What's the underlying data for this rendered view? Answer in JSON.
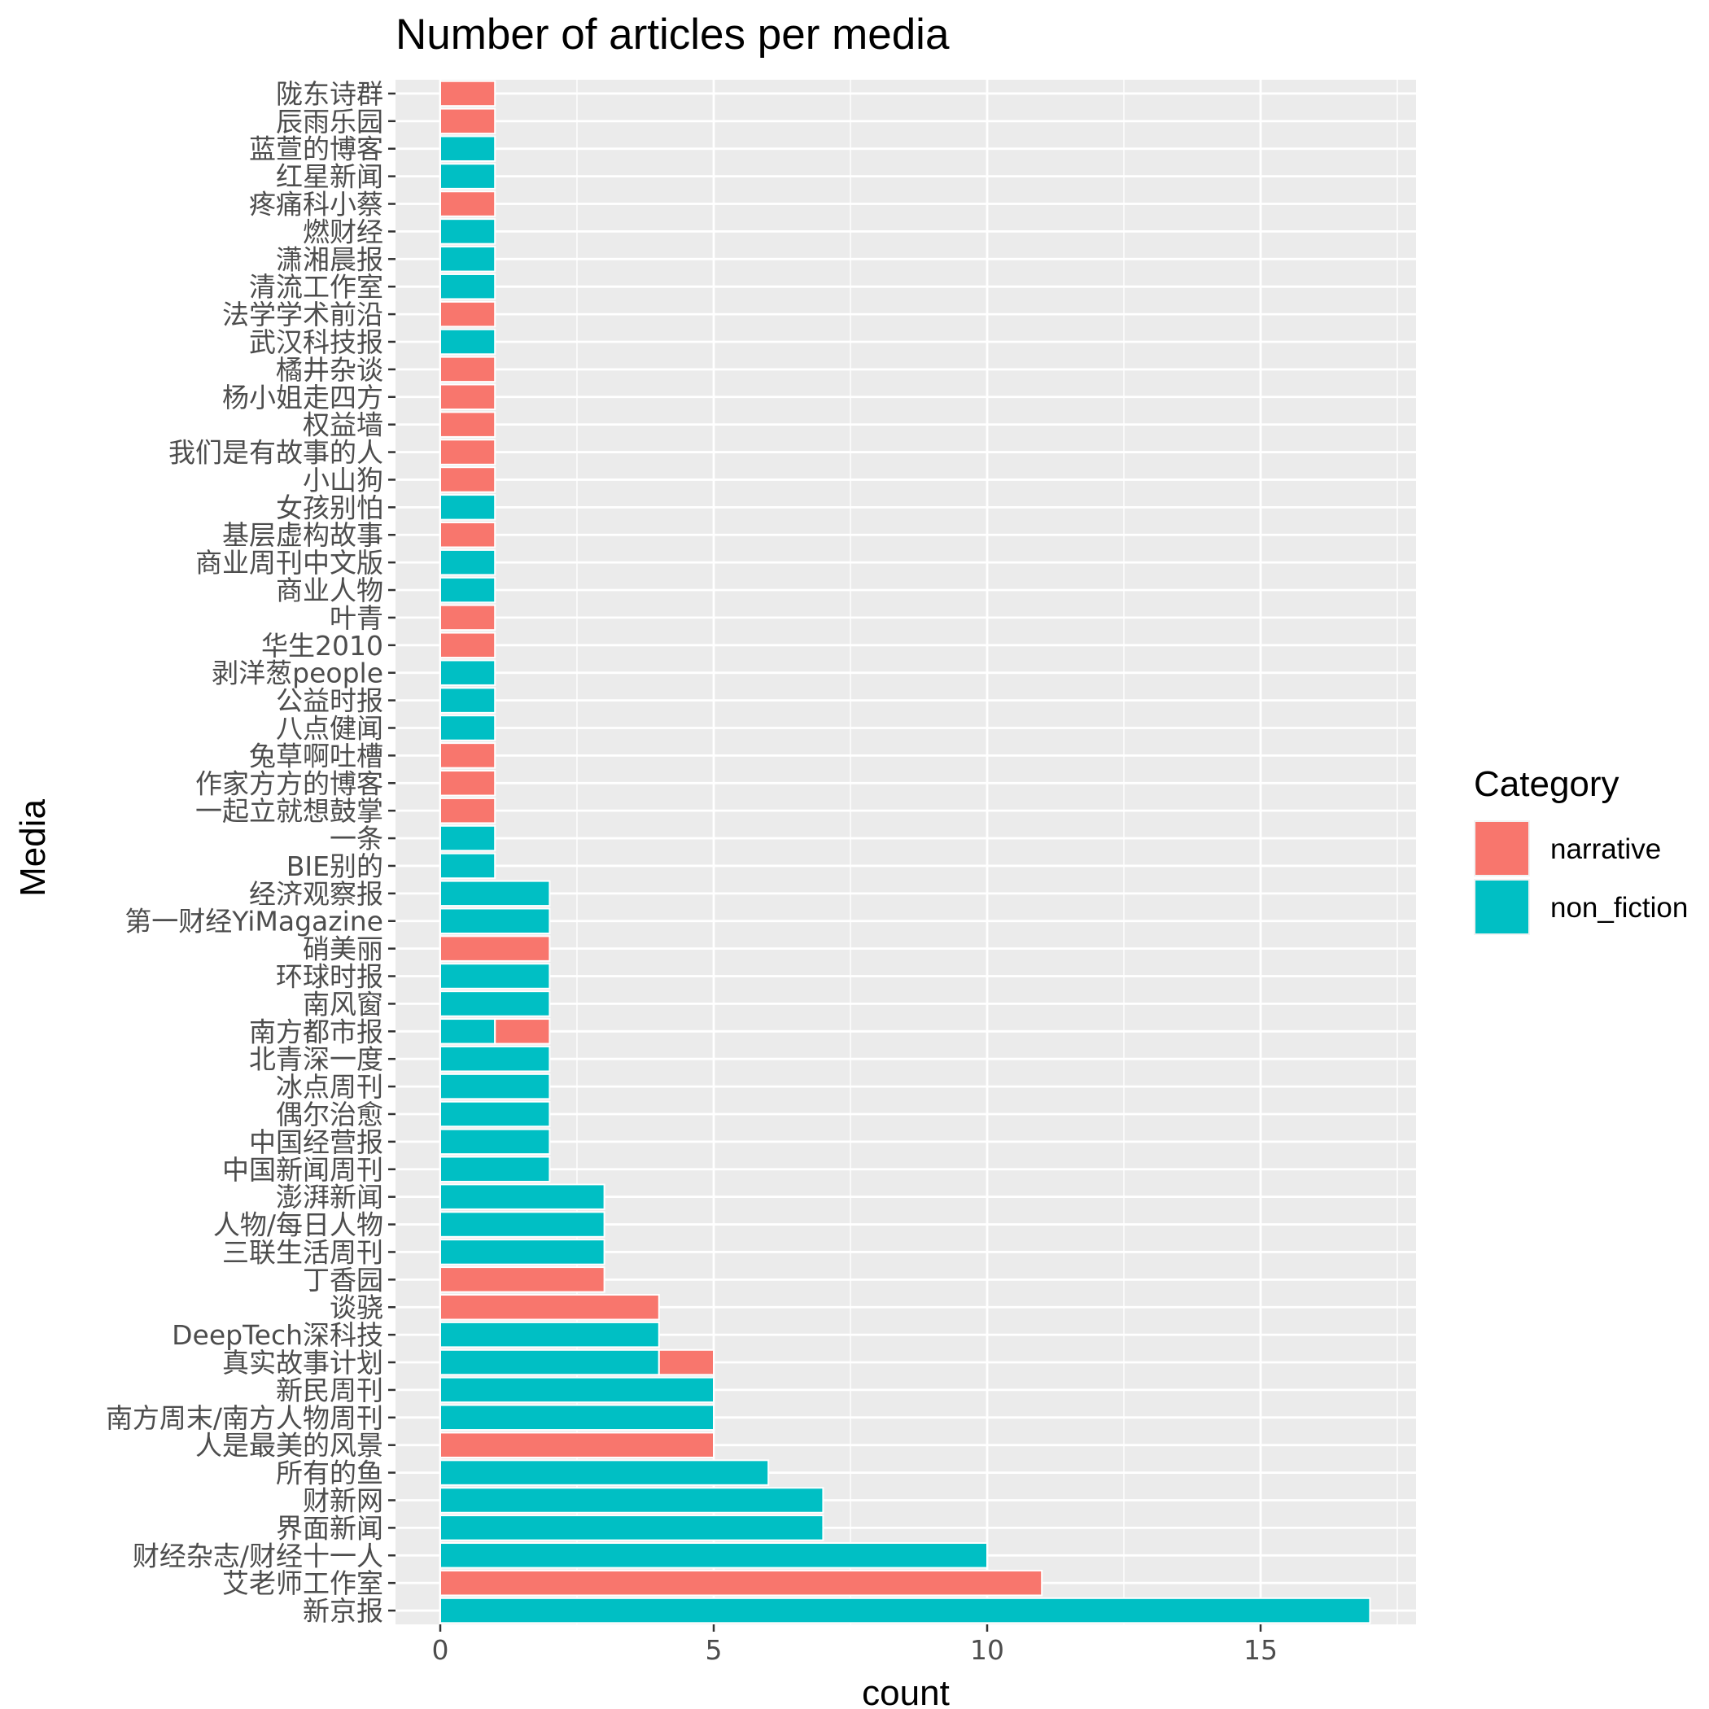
{
  "chart_data": {
    "type": "bar",
    "orientation": "horizontal",
    "stacked": true,
    "title": "Number of articles per media",
    "xlabel": "count",
    "ylabel": "Media",
    "xlim": [
      -0.8,
      17.85
    ],
    "x_ticks": [
      0,
      5,
      10,
      15
    ],
    "grid": true,
    "legend": {
      "title": "Category",
      "position": "right",
      "entries": [
        {
          "name": "narrative",
          "color": "#F8766D"
        },
        {
          "name": "non_fiction",
          "color": "#00BFC4"
        }
      ]
    },
    "series_colors": {
      "narrative": "#F8766D",
      "non_fiction": "#00BFC4"
    },
    "categories": [
      {
        "label": "陇东诗群",
        "non_fiction": 0,
        "narrative": 1
      },
      {
        "label": "辰雨乐园",
        "non_fiction": 0,
        "narrative": 1
      },
      {
        "label": "蓝萱的博客",
        "non_fiction": 1,
        "narrative": 0
      },
      {
        "label": "红星新闻",
        "non_fiction": 1,
        "narrative": 0
      },
      {
        "label": "疼痛科小蔡",
        "non_fiction": 0,
        "narrative": 1
      },
      {
        "label": "燃财经",
        "non_fiction": 1,
        "narrative": 0
      },
      {
        "label": "潇湘晨报",
        "non_fiction": 1,
        "narrative": 0
      },
      {
        "label": "清流工作室",
        "non_fiction": 1,
        "narrative": 0
      },
      {
        "label": "法学学术前沿",
        "non_fiction": 0,
        "narrative": 1
      },
      {
        "label": "武汉科技报",
        "non_fiction": 1,
        "narrative": 0
      },
      {
        "label": "橘井杂谈",
        "non_fiction": 0,
        "narrative": 1
      },
      {
        "label": "杨小姐走四方",
        "non_fiction": 0,
        "narrative": 1
      },
      {
        "label": "权益墙",
        "non_fiction": 0,
        "narrative": 1
      },
      {
        "label": "我们是有故事的人",
        "non_fiction": 0,
        "narrative": 1
      },
      {
        "label": "小山狗",
        "non_fiction": 0,
        "narrative": 1
      },
      {
        "label": "女孩别怕",
        "non_fiction": 1,
        "narrative": 0
      },
      {
        "label": "基层虚构故事",
        "non_fiction": 0,
        "narrative": 1
      },
      {
        "label": "商业周刊中文版",
        "non_fiction": 1,
        "narrative": 0
      },
      {
        "label": "商业人物",
        "non_fiction": 1,
        "narrative": 0
      },
      {
        "label": "叶青",
        "non_fiction": 0,
        "narrative": 1
      },
      {
        "label": "华生2010",
        "non_fiction": 0,
        "narrative": 1
      },
      {
        "label": "剥洋葱people",
        "non_fiction": 1,
        "narrative": 0
      },
      {
        "label": "公益时报",
        "non_fiction": 1,
        "narrative": 0
      },
      {
        "label": "八点健闻",
        "non_fiction": 1,
        "narrative": 0
      },
      {
        "label": "兔草啊吐槽",
        "non_fiction": 0,
        "narrative": 1
      },
      {
        "label": "作家方方的博客",
        "non_fiction": 0,
        "narrative": 1
      },
      {
        "label": "一起立就想鼓掌",
        "non_fiction": 0,
        "narrative": 1
      },
      {
        "label": "一条",
        "non_fiction": 1,
        "narrative": 0
      },
      {
        "label": "BIE别的",
        "non_fiction": 1,
        "narrative": 0
      },
      {
        "label": "经济观察报",
        "non_fiction": 2,
        "narrative": 0
      },
      {
        "label": "第一财经YiMagazine",
        "non_fiction": 2,
        "narrative": 0
      },
      {
        "label": "硝美丽",
        "non_fiction": 0,
        "narrative": 2
      },
      {
        "label": "环球时报",
        "non_fiction": 2,
        "narrative": 0
      },
      {
        "label": "南风窗",
        "non_fiction": 2,
        "narrative": 0
      },
      {
        "label": "南方都市报",
        "non_fiction": 1,
        "narrative": 1
      },
      {
        "label": "北青深一度",
        "non_fiction": 2,
        "narrative": 0
      },
      {
        "label": "冰点周刊",
        "non_fiction": 2,
        "narrative": 0
      },
      {
        "label": "偶尔治愈",
        "non_fiction": 2,
        "narrative": 0
      },
      {
        "label": "中国经营报",
        "non_fiction": 2,
        "narrative": 0
      },
      {
        "label": "中国新闻周刊",
        "non_fiction": 2,
        "narrative": 0
      },
      {
        "label": "澎湃新闻",
        "non_fiction": 3,
        "narrative": 0
      },
      {
        "label": "人物/每日人物",
        "non_fiction": 3,
        "narrative": 0
      },
      {
        "label": "三联生活周刊",
        "non_fiction": 3,
        "narrative": 0
      },
      {
        "label": "丁香园",
        "non_fiction": 0,
        "narrative": 3
      },
      {
        "label": "谈骁",
        "non_fiction": 0,
        "narrative": 4
      },
      {
        "label": "DeepTech深科技",
        "non_fiction": 4,
        "narrative": 0
      },
      {
        "label": "真实故事计划",
        "non_fiction": 4,
        "narrative": 1
      },
      {
        "label": "新民周刊",
        "non_fiction": 5,
        "narrative": 0
      },
      {
        "label": "南方周末/南方人物周刊",
        "non_fiction": 5,
        "narrative": 0
      },
      {
        "label": "人是最美的风景",
        "non_fiction": 0,
        "narrative": 5
      },
      {
        "label": "所有的鱼",
        "non_fiction": 6,
        "narrative": 0
      },
      {
        "label": "财新网",
        "non_fiction": 7,
        "narrative": 0
      },
      {
        "label": "界面新闻",
        "non_fiction": 7,
        "narrative": 0
      },
      {
        "label": "财经杂志/财经十一人",
        "non_fiction": 10,
        "narrative": 0
      },
      {
        "label": "艾老师工作室",
        "non_fiction": 0,
        "narrative": 11
      },
      {
        "label": "新京报",
        "non_fiction": 17,
        "narrative": 0
      }
    ]
  }
}
